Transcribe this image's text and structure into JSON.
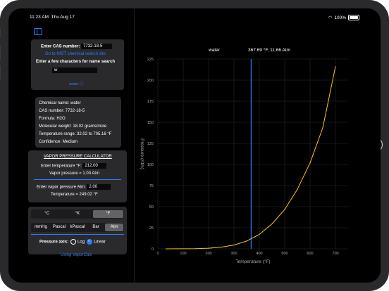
{
  "status": {
    "time": "11:23 AM",
    "date": "Thu Aug 17",
    "battery": "100%"
  },
  "cas": {
    "label": "Enter CAS number:",
    "value": "7732-18-5",
    "nist_link": "Go to NIST chemical search site",
    "name_label": "Enter a few characters for name search",
    "name_value": "w",
    "result_link": "water ⓘ"
  },
  "info": {
    "name": "Chemical name: water",
    "cas": "CAS number: 7732-18-5",
    "formula": "Formula: H2O",
    "mw": "Molecular weight: 18.02 grams/mole",
    "trange": "Temperature range: 32.02 to 705.16 °F",
    "confidence": "Confidence: Medium"
  },
  "calc": {
    "title": "VAPOR PRESSURE CALCULATOR",
    "temp_label": "Enter temperature °F:",
    "temp_value": "212.00",
    "vp_result": "Vapor pressure = 1.00 Atm",
    "vp_label": "Enter vapor pressure Atm:",
    "vp_value": "2.00",
    "temp_result": "Temperature = 249.02 °F"
  },
  "temp_units": [
    {
      "label": "°C",
      "selected": false
    },
    {
      "label": "°K",
      "selected": false
    },
    {
      "label": "°F",
      "selected": true
    }
  ],
  "pressure_units": [
    {
      "label": "mmHg",
      "selected": false
    },
    {
      "label": "Pascal",
      "selected": false
    },
    {
      "label": "kPascal",
      "selected": false
    },
    {
      "label": "Bar",
      "selected": false
    },
    {
      "label": "Atm",
      "selected": true
    }
  ],
  "axis": {
    "label": "Pressure axis:",
    "log": "Log",
    "linear": "Linear",
    "selected": "linear"
  },
  "footer_link": "Using VaporCalc",
  "colors": {
    "accent": "#2f7cf6",
    "curve": "#f5c518",
    "panel": "#2a2a2c"
  },
  "chart_data": {
    "type": "line",
    "series_label": "water",
    "cursor_label": "367.69 °F, 11.66 Atm",
    "cursor_x": 367.69,
    "xlabel": "Temperature (°F)",
    "ylabel": "Pressure (Atm)",
    "xlim": [
      0,
      750
    ],
    "ylim": [
      0,
      225
    ],
    "xticks": [
      0,
      100,
      200,
      300,
      400,
      500,
      600,
      700
    ],
    "yticks": [
      0,
      25,
      50,
      75,
      100,
      125,
      150,
      175,
      200,
      225
    ],
    "x": [
      32,
      100,
      150,
      200,
      212,
      250,
      300,
      350,
      400,
      450,
      500,
      550,
      600,
      650,
      700
    ],
    "y": [
      0.006,
      0.065,
      0.25,
      0.77,
      1.0,
      2.0,
      4.5,
      9.2,
      17.1,
      29.6,
      46.6,
      70.6,
      101.9,
      143.4,
      216.0
    ],
    "grid": true
  }
}
